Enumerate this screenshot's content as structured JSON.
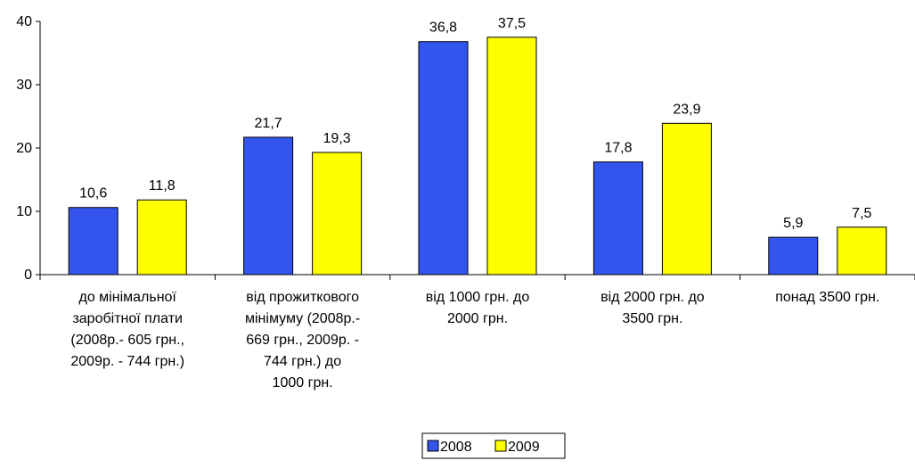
{
  "chart_data": {
    "type": "bar",
    "title": "",
    "xlabel": "",
    "ylabel": "",
    "ylim": [
      0,
      40
    ],
    "yticks": [
      0,
      10,
      20,
      30,
      40
    ],
    "grid": false,
    "legend_position": "bottom",
    "categories": [
      [
        "до мінімальної",
        "заробітної плати",
        "(2008р.- 605 грн.,",
        "2009р. - 744 грн.)"
      ],
      [
        "від прожиткового",
        "мінімуму (2008р.-",
        "669 грн., 2009р. -",
        "744 грн.) до",
        "1000 грн."
      ],
      [
        "від 1000 грн. до",
        "2000 грн."
      ],
      [
        "від 2000 грн. до",
        "3500 грн."
      ],
      [
        "понад 3500 грн."
      ]
    ],
    "series": [
      {
        "name": "2008",
        "color": "#3355ee",
        "values": [
          10.6,
          21.7,
          36.8,
          17.8,
          5.9
        ]
      },
      {
        "name": "2009",
        "color": "#ffff00",
        "values": [
          11.8,
          19.3,
          37.5,
          23.9,
          7.5
        ]
      }
    ],
    "data_labels": [
      [
        "10,6",
        "21,7",
        "36,8",
        "17,8",
        "5,9"
      ],
      [
        "11,8",
        "19,3",
        "37,5",
        "23,9",
        "7,5"
      ]
    ]
  }
}
